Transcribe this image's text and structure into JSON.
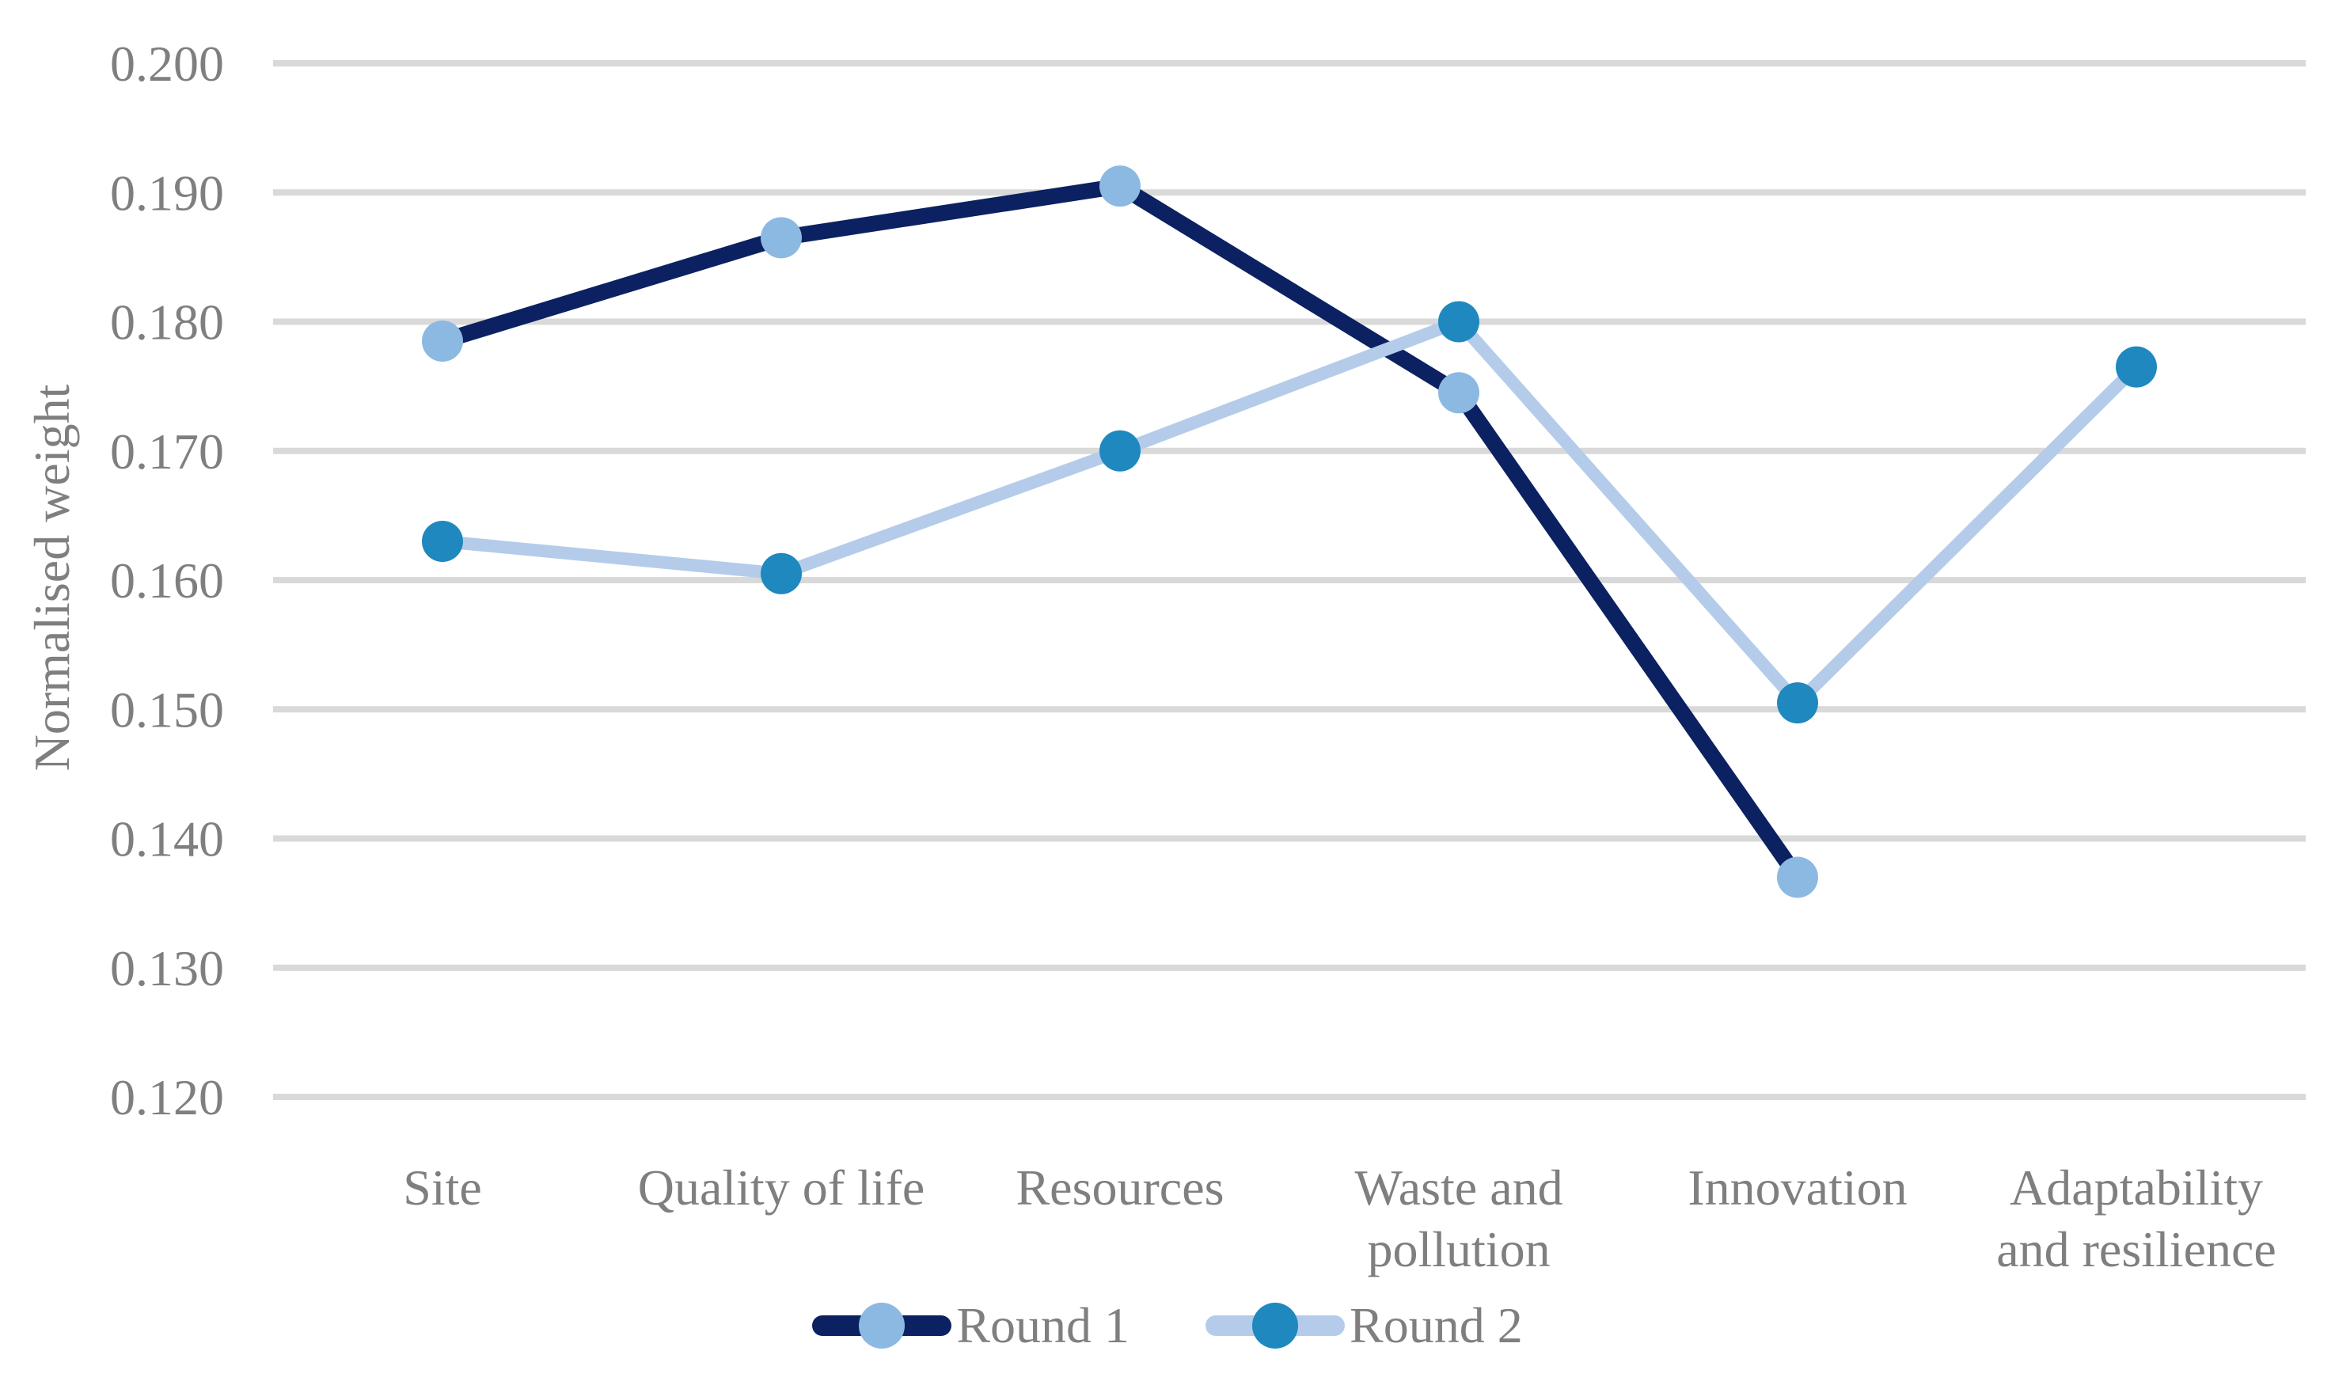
{
  "chart_data": {
    "type": "line",
    "title": "",
    "xlabel": "",
    "ylabel": "Normalised weight",
    "categories": [
      "Site",
      "Quality of life",
      "Resources",
      "Waste and pollution",
      "Innovation",
      "Adaptability and resilience"
    ],
    "category_label_lines": [
      [
        "Site"
      ],
      [
        "Quality of life"
      ],
      [
        "Resources"
      ],
      [
        "Waste and",
        "pollution"
      ],
      [
        "Innovation"
      ],
      [
        "Adaptability",
        "and resilience"
      ]
    ],
    "y_axis": {
      "min": 0.12,
      "max": 0.2,
      "step": 0.01,
      "tick_labels": [
        "0.200",
        "0.190",
        "0.180",
        "0.170",
        "0.160",
        "0.150",
        "0.140",
        "0.130",
        "0.120"
      ]
    },
    "series": [
      {
        "name": "Round 1",
        "line_color": "#0B2161",
        "marker_color": "#8CB9E1",
        "values": [
          0.1785,
          0.1865,
          0.1905,
          0.1745,
          0.137,
          null
        ]
      },
      {
        "name": "Round 2",
        "line_color": "#B4CCEA",
        "marker_color": "#1E88BF",
        "values": [
          0.163,
          0.1605,
          0.17,
          0.18,
          0.1505,
          0.1765
        ]
      }
    ],
    "legend_position": "bottom-center",
    "grid": "horizontal",
    "grid_color": "#D9D9D9",
    "text_color": "#7F7F7F"
  }
}
